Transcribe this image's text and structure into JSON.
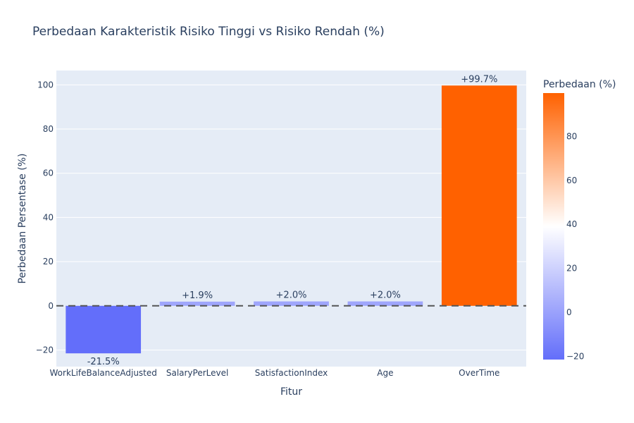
{
  "chart_data": {
    "type": "bar",
    "title": "Perbedaan Karakteristik Risiko Tinggi vs Risiko Rendah (%)",
    "xlabel": "Fitur",
    "ylabel": "Perbedaan Persentase (%)",
    "categories": [
      "WorkLifeBalanceAdjusted",
      "SalaryPerLevel",
      "SatisfactionIndex",
      "Age",
      "OverTime"
    ],
    "values": [
      -21.5,
      1.9,
      2.0,
      2.0,
      99.7
    ],
    "data_labels": [
      "-21.5%",
      "+1.9%",
      "+2.0%",
      "+2.0%",
      "+99.7%"
    ],
    "ylim": [
      -27.5,
      106.5
    ],
    "yticks": [
      -20,
      0,
      20,
      40,
      60,
      80,
      100
    ],
    "ytick_labels": [
      "−20",
      "0",
      "20",
      "40",
      "60",
      "80",
      "100"
    ],
    "grid": true,
    "reference_line": {
      "y": 0,
      "style": "dashed",
      "color": "#555555"
    },
    "colorscale": {
      "title": "Perbedaan (%)",
      "range": [
        -21.5,
        99.7
      ],
      "ticks": [
        -20,
        0,
        20,
        40,
        60,
        80
      ],
      "tick_labels": [
        "−20",
        "0",
        "20",
        "40",
        "60",
        "80"
      ],
      "colors": [
        "#636efa",
        "#ffffff",
        "#ff6100"
      ]
    },
    "colors": {
      "plot_bg": "#e5ecf6",
      "text": "#2a3f5f"
    }
  }
}
